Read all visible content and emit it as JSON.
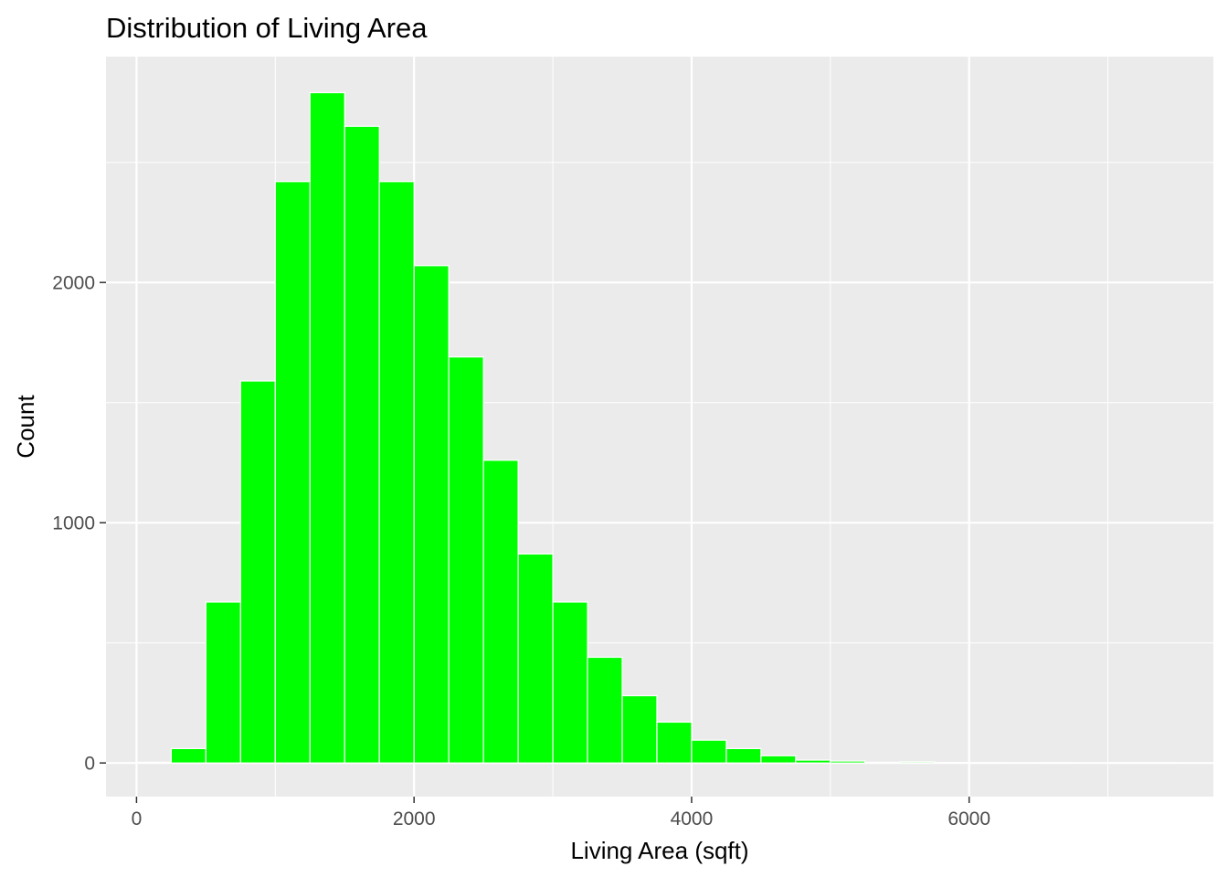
{
  "chart_data": {
    "type": "bar",
    "title": "Distribution of Living Area",
    "xlabel": "Living Area (sqft)",
    "ylabel": "Count",
    "xlim": [
      -220,
      7760
    ],
    "ylim": [
      -140,
      2940
    ],
    "x_ticks": [
      0,
      2000,
      4000,
      6000
    ],
    "x_tick_labels": [
      "0",
      "2000",
      "4000",
      "6000"
    ],
    "y_ticks": [
      0,
      1000,
      2000
    ],
    "y_tick_labels": [
      "0",
      "1000",
      "2000"
    ],
    "bin_width": 250,
    "bins": [
      {
        "x0": 0,
        "x1": 250,
        "count": 3
      },
      {
        "x0": 250,
        "x1": 500,
        "count": 60
      },
      {
        "x0": 500,
        "x1": 750,
        "count": 670
      },
      {
        "x0": 750,
        "x1": 1000,
        "count": 1590
      },
      {
        "x0": 1000,
        "x1": 1250,
        "count": 2420
      },
      {
        "x0": 1250,
        "x1": 1500,
        "count": 2790
      },
      {
        "x0": 1500,
        "x1": 1750,
        "count": 2650
      },
      {
        "x0": 1750,
        "x1": 2000,
        "count": 2420
      },
      {
        "x0": 2000,
        "x1": 2250,
        "count": 2070
      },
      {
        "x0": 2250,
        "x1": 2500,
        "count": 1690
      },
      {
        "x0": 2500,
        "x1": 2750,
        "count": 1260
      },
      {
        "x0": 2750,
        "x1": 3000,
        "count": 870
      },
      {
        "x0": 3000,
        "x1": 3250,
        "count": 670
      },
      {
        "x0": 3250,
        "x1": 3500,
        "count": 440
      },
      {
        "x0": 3500,
        "x1": 3750,
        "count": 280
      },
      {
        "x0": 3750,
        "x1": 4000,
        "count": 170
      },
      {
        "x0": 4000,
        "x1": 4250,
        "count": 95
      },
      {
        "x0": 4250,
        "x1": 4500,
        "count": 60
      },
      {
        "x0": 4500,
        "x1": 4750,
        "count": 30
      },
      {
        "x0": 4750,
        "x1": 5000,
        "count": 12
      },
      {
        "x0": 5000,
        "x1": 5250,
        "count": 8
      },
      {
        "x0": 5250,
        "x1": 5500,
        "count": 3
      },
      {
        "x0": 5500,
        "x1": 5750,
        "count": 5
      },
      {
        "x0": 5750,
        "x1": 6000,
        "count": 2
      },
      {
        "x0": 6000,
        "x1": 6250,
        "count": 1
      },
      {
        "x0": 6250,
        "x1": 6500,
        "count": 0
      },
      {
        "x0": 6500,
        "x1": 6750,
        "count": 1
      },
      {
        "x0": 6750,
        "x1": 7000,
        "count": 0
      },
      {
        "x0": 7000,
        "x1": 7250,
        "count": 1
      },
      {
        "x0": 7250,
        "x1": 7500,
        "count": 1
      }
    ],
    "grid": true,
    "legend": "none",
    "colors": {
      "bar_fill": "#00ff00",
      "bar_outline": "#ffffff",
      "panel_background": "#ebebeb",
      "grid_major": "#ffffff",
      "grid_minor": "#ffffff",
      "tick_label": "#4d4d4d",
      "tick_mark": "#333333"
    }
  }
}
